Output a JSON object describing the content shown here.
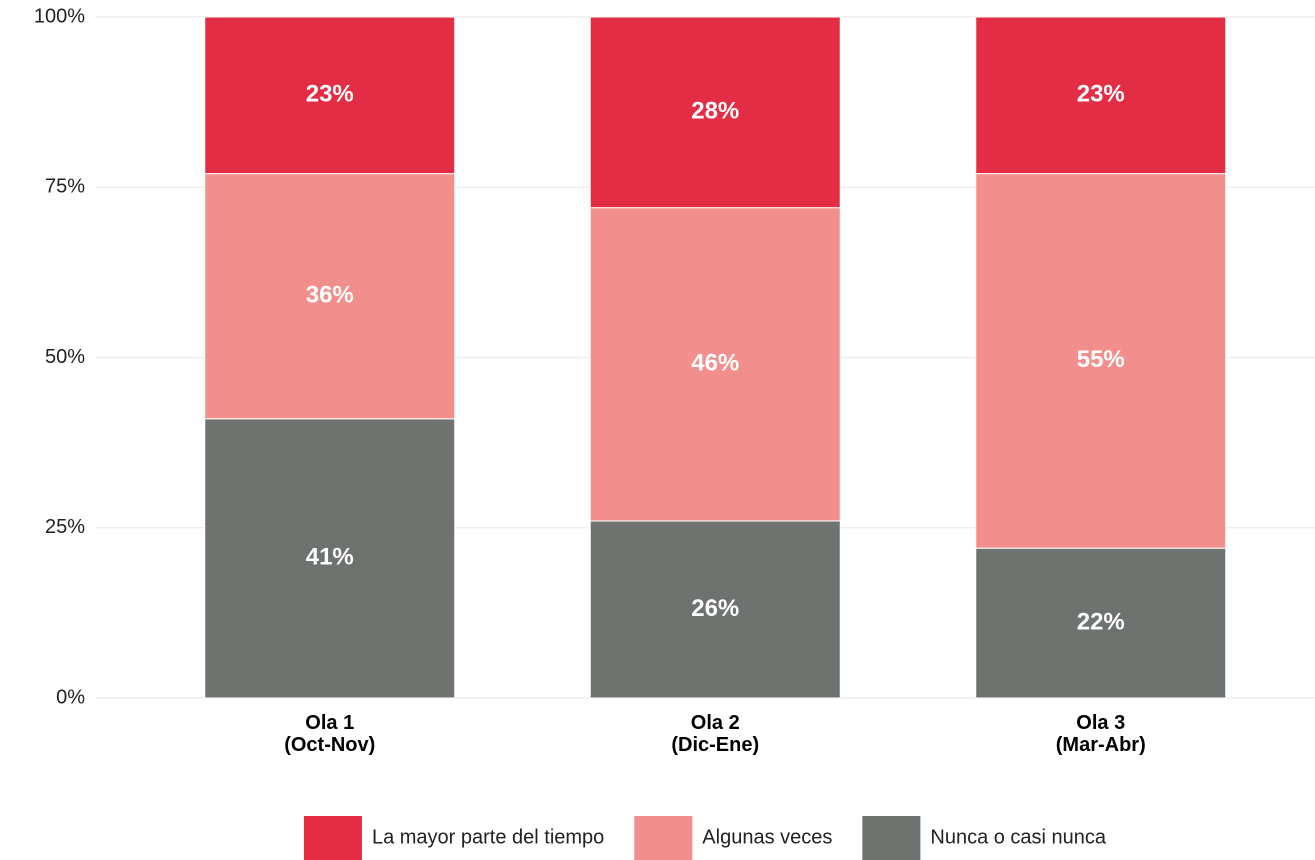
{
  "chart_data": {
    "type": "stacked_bar",
    "categories": [
      "Ola 1\n(Oct-Nov)",
      "Ola 2\n(Dic-Ene)",
      "Ola 3\n(Mar-Abr)"
    ],
    "series": [
      {
        "name": "Nunca o casi nunca",
        "color": "#6f7370",
        "values": [
          41,
          26,
          22
        ],
        "value_labels": [
          "41%",
          "26%",
          "22%"
        ]
      },
      {
        "name": "Algunas veces",
        "color": "#f28e8c",
        "values": [
          36,
          46,
          55
        ],
        "value_labels": [
          "36%",
          "46%",
          "55%"
        ]
      },
      {
        "name": "La mayor parte del tiempo",
        "color": "#e32d45",
        "values": [
          23,
          28,
          23
        ],
        "value_labels": [
          "23%",
          "28%",
          "23%"
        ]
      }
    ],
    "ylim": [
      0,
      100
    ],
    "yticks": [
      {
        "value": 0,
        "label": "0%"
      },
      {
        "value": 25,
        "label": "25%"
      },
      {
        "value": 50,
        "label": "50%"
      },
      {
        "value": 75,
        "label": "75%"
      },
      {
        "value": 100,
        "label": "100%"
      }
    ],
    "grid": true,
    "legend": "bottom"
  }
}
